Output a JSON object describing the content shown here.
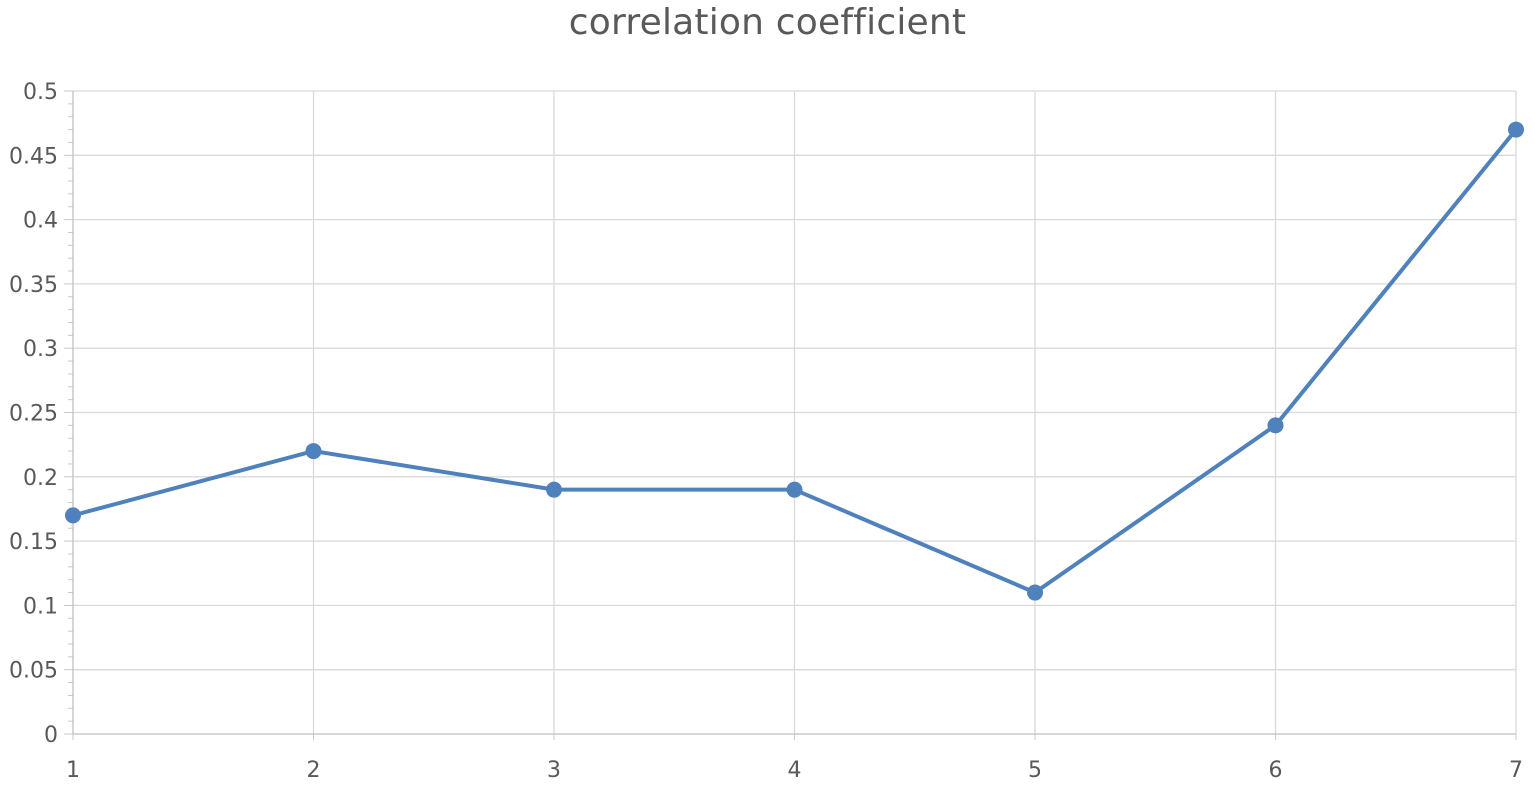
{
  "chart_data": {
    "type": "line",
    "title": "correlation coefficient",
    "x": [
      1,
      2,
      3,
      4,
      5,
      6,
      7
    ],
    "x_tick_labels": [
      "1",
      "2",
      "3",
      "4",
      "5",
      "6",
      "7"
    ],
    "y_tick_labels": [
      "0",
      "0.05",
      "0.1",
      "0.15",
      "0.2",
      "0.25",
      "0.3",
      "0.35",
      "0.4",
      "0.45",
      "0.5"
    ],
    "series": [
      {
        "values": [
          0.17,
          0.22,
          0.19,
          0.19,
          0.11,
          0.24,
          0.47
        ],
        "color": "#4f81bd"
      }
    ],
    "xlim": [
      1,
      7
    ],
    "ylim": [
      0,
      0.5
    ],
    "y_major_step": 0.05,
    "grid": true,
    "legend": "none",
    "xlabel": "",
    "ylabel": ""
  }
}
